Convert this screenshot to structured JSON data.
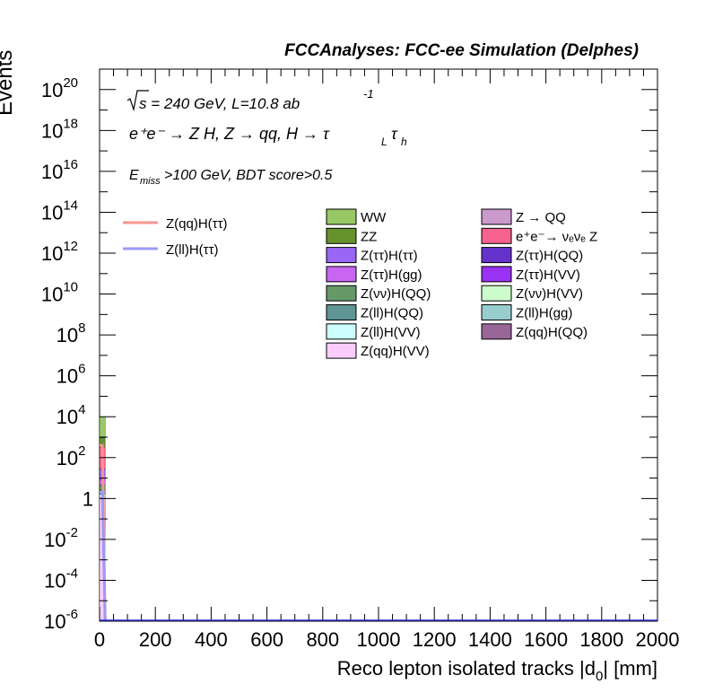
{
  "header": {
    "title": "FCCAnalyses: FCC-ee Simulation (Delphes)"
  },
  "annotations": {
    "sqrt_s_label": "s = 240 GeV, L=10.8 ab",
    "lumi_exp": "-1",
    "process_label": "e⁺e⁻ → Z H, Z → qq, H → τ",
    "process_sub_l": "L",
    "process_tau2": "τ",
    "process_sub_h": "h",
    "cut_e": "E",
    "cut_sub": "miss",
    "cut_rest": ">100 GeV, BDT score>0.5"
  },
  "legend": {
    "signals": [
      {
        "name": "Z(qq)H(ττ)",
        "color": "#f7958f"
      },
      {
        "name": "Z(ll)H(ττ)",
        "color": "#9a9af5"
      }
    ],
    "backgrounds_left": [
      {
        "name": "WW",
        "color": "#98c866"
      },
      {
        "name": "ZZ",
        "color": "#66922e"
      },
      {
        "name": "Z(ττ)H(ττ)",
        "color": "#9a66f5"
      },
      {
        "name": "Z(ττ)H(gg)",
        "color": "#c866f2"
      },
      {
        "name": "Z(νν)H(QQ)",
        "color": "#66986a"
      },
      {
        "name": "Z(ll)H(QQ)",
        "color": "#5f9595"
      },
      {
        "name": "Z(ll)H(VV)",
        "color": "#ccfcfc"
      },
      {
        "name": "Z(qq)H(VV)",
        "color": "#fcccfc"
      }
    ],
    "backgrounds_right": [
      {
        "name": "Z → QQ",
        "color": "#cc99cc"
      },
      {
        "name": "e⁺e⁻→ νₑνₑ Z",
        "color": "#f7628f"
      },
      {
        "name": "Z(ττ)H(QQ)",
        "color": "#6632cc"
      },
      {
        "name": "Z(ττ)H(VV)",
        "color": "#9932f2"
      },
      {
        "name": "Z(νν)H(VV)",
        "color": "#ccfccc"
      },
      {
        "name": "Z(ll)H(gg)",
        "color": "#99cccc"
      },
      {
        "name": "Z(qq)H(QQ)",
        "color": "#996699"
      }
    ]
  },
  "chart_data": {
    "type": "bar",
    "title": "FCCAnalyses: FCC-ee Simulation (Delphes)",
    "xlabel": "Reco lepton isolated tracks |d0| [mm]",
    "ylabel": "Events",
    "xlim": [
      0,
      2000
    ],
    "ylim": [
      1e-06,
      1e+21
    ],
    "log_y": true,
    "x_ticks": [
      "0",
      "200",
      "400",
      "600",
      "800",
      "1000",
      "1200",
      "1400",
      "1600",
      "1800",
      "2000"
    ],
    "y_ticks": [
      {
        "label": "10",
        "exp": "-6",
        "value": 1e-06
      },
      {
        "label": "10",
        "exp": "-4",
        "value": 0.0001
      },
      {
        "label": "10",
        "exp": "-2",
        "value": 0.01
      },
      {
        "label": "1",
        "exp": "",
        "value": 1
      },
      {
        "label": "10",
        "exp": "2",
        "value": 100.0
      },
      {
        "label": "10",
        "exp": "4",
        "value": 10000.0
      },
      {
        "label": "10",
        "exp": "6",
        "value": 1000000.0
      },
      {
        "label": "10",
        "exp": "8",
        "value": 100000000.0
      },
      {
        "label": "10",
        "exp": "10",
        "value": 10000000000.0
      },
      {
        "label": "10",
        "exp": "12",
        "value": 1000000000000.0
      },
      {
        "label": "10",
        "exp": "14",
        "value": 100000000000000.0
      },
      {
        "label": "10",
        "exp": "16",
        "value": 1e+16
      },
      {
        "label": "10",
        "exp": "18",
        "value": 1e+18
      },
      {
        "label": "10",
        "exp": "20",
        "value": 1e+20
      }
    ],
    "stack_bin": [
      0,
      20
    ],
    "stack_components": [
      {
        "name": "Z(qq)H(VV)",
        "value": 1.1,
        "color": "#fcccfc"
      },
      {
        "name": "Z(ll)H(VV)",
        "value": 0.5,
        "color": "#ccfcfc"
      },
      {
        "name": "Z(ll)H(QQ)",
        "value": 1.0,
        "color": "#5f9595"
      },
      {
        "name": "Z(νν)H(QQ)",
        "value": 2,
        "color": "#66986a"
      },
      {
        "name": "Z(ττ)H(gg)",
        "value": 4,
        "color": "#c866f2"
      },
      {
        "name": "Z(ττ)H(ττ)",
        "value": 20,
        "color": "#9a66f5"
      },
      {
        "name": "e⁺e⁻→ νₑνₑ Z",
        "value": 300,
        "color": "#f7628f"
      },
      {
        "name": "ZZ",
        "value": 600,
        "color": "#66922e"
      },
      {
        "name": "WW",
        "value": 9000,
        "color": "#98c866"
      }
    ],
    "signal_curves": [
      {
        "name": "Z(qq)H(ττ)",
        "color": "#f7958f",
        "x": [
          0,
          10,
          20
        ],
        "y": [
          400,
          400,
          1e-06
        ]
      },
      {
        "name": "Z(ll)H(ττ)",
        "color": "#9a9af5",
        "x": [
          0,
          10,
          20
        ],
        "y": [
          2,
          2,
          1e-06
        ]
      }
    ]
  }
}
